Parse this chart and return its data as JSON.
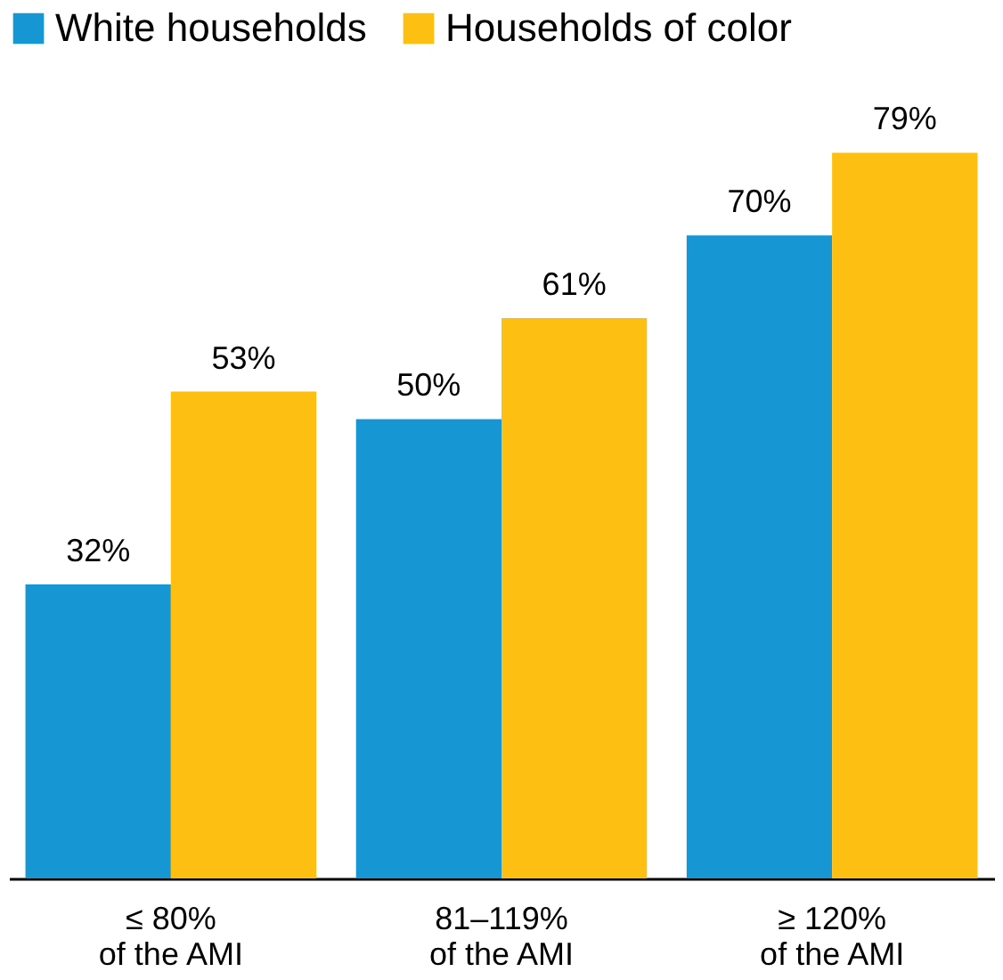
{
  "chart_data": {
    "type": "bar",
    "categories": [
      "≤ 80%\nof the AMI",
      "81–119%\nof the AMI",
      "≥ 120%\nof the AMI"
    ],
    "series": [
      {
        "name": "White households",
        "color": "#1696d2",
        "values": [
          32,
          50,
          70
        ],
        "value_labels": [
          "32%",
          "50%",
          "70%"
        ]
      },
      {
        "name": "Households of color",
        "color": "#fdbf11",
        "values": [
          53,
          61,
          79
        ],
        "value_labels": [
          "53%",
          "61%",
          "79%"
        ]
      }
    ],
    "legend": "top left",
    "grid": false
  }
}
